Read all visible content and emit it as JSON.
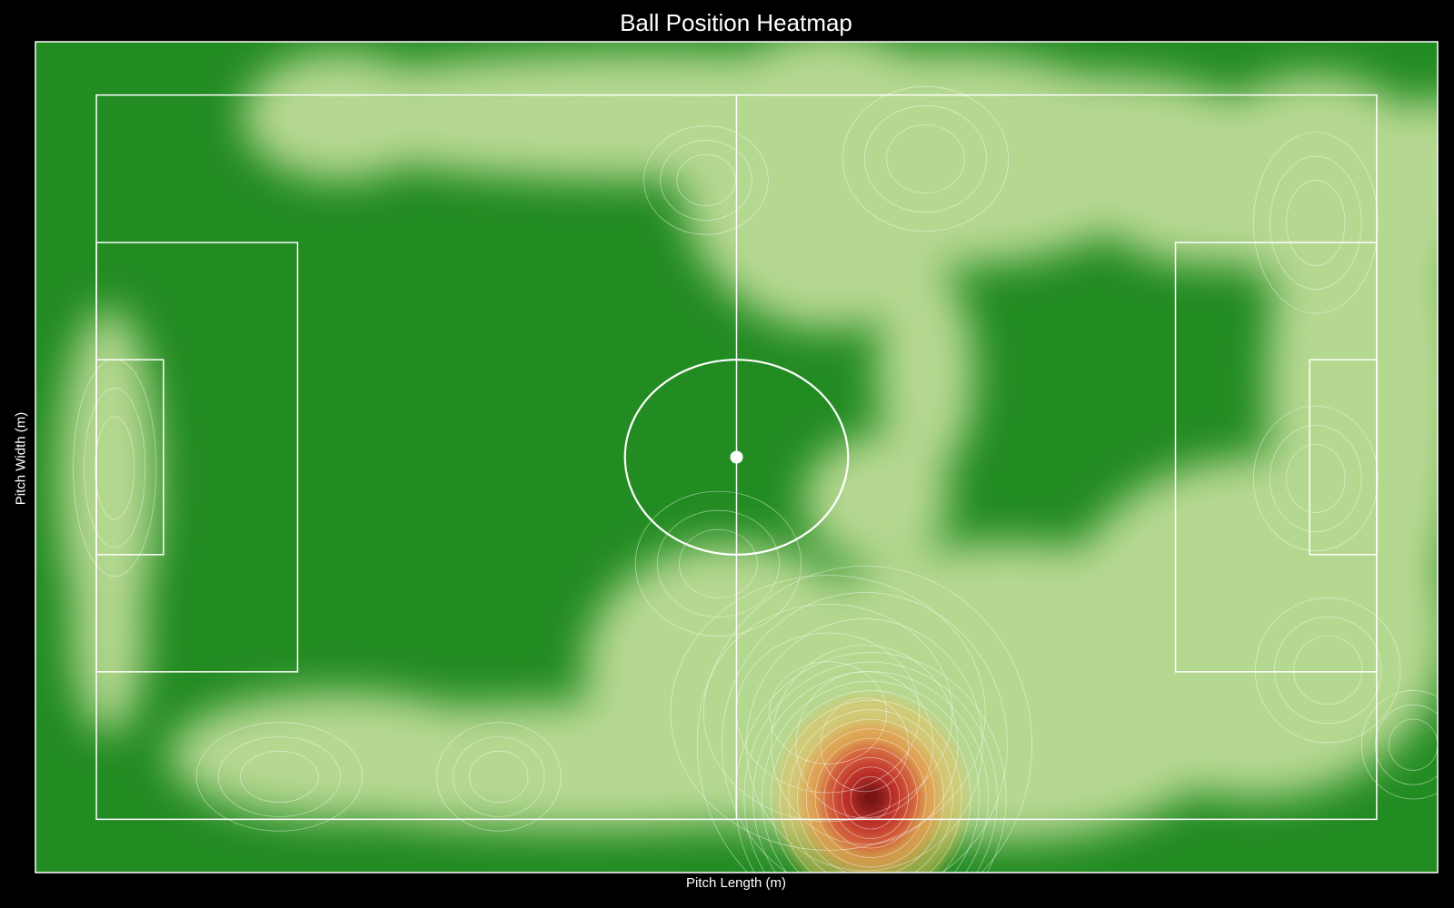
{
  "chart_data": {
    "type": "heatmap",
    "title": "Ball Position Heatmap",
    "xlabel": "Pitch Length (m)",
    "ylabel": "Pitch Width (m)",
    "xlim": [
      -5,
      110
    ],
    "ylim": [
      -5,
      73
    ],
    "grid": false,
    "colors": {
      "pitch": "#228b22",
      "low_density": "#b5d890",
      "mid_density": "#e8c060",
      "high_density": "#c0322a",
      "peak": "#6e1414",
      "lines": "#ffffff",
      "background": "#000000"
    },
    "pitch": {
      "length": 105,
      "width": 68,
      "center_circle_radius": 9.15,
      "penalty_area": {
        "depth": 16.5,
        "width": 40.3
      },
      "goal_area": {
        "depth": 5.5,
        "width": 18.3
      }
    },
    "density_peaks": [
      {
        "x": 63.5,
        "y": 2,
        "weight": 1.0,
        "sx": 2.6,
        "sy": 3.2
      },
      {
        "x": 63,
        "y": 7,
        "weight": 0.45,
        "sx": 4.5,
        "sy": 5.5
      },
      {
        "x": 60,
        "y": 10,
        "weight": 0.25,
        "sx": 6,
        "sy": 6
      },
      {
        "x": 100,
        "y": 56,
        "weight": 0.2,
        "sx": 3,
        "sy": 5
      },
      {
        "x": 100,
        "y": 32,
        "weight": 0.18,
        "sx": 3,
        "sy": 4
      },
      {
        "x": 101,
        "y": 14,
        "weight": 0.18,
        "sx": 3.5,
        "sy": 4
      },
      {
        "x": 1.5,
        "y": 33,
        "weight": 0.18,
        "sx": 2,
        "sy": 6
      },
      {
        "x": 15,
        "y": 4,
        "weight": 0.15,
        "sx": 4,
        "sy": 3
      },
      {
        "x": 33,
        "y": 4,
        "weight": 0.13,
        "sx": 3,
        "sy": 3
      },
      {
        "x": 51,
        "y": 24,
        "weight": 0.13,
        "sx": 4,
        "sy": 4
      },
      {
        "x": 68,
        "y": 62,
        "weight": 0.13,
        "sx": 4,
        "sy": 4
      },
      {
        "x": 50,
        "y": 60,
        "weight": 0.1,
        "sx": 3,
        "sy": 3
      },
      {
        "x": 108,
        "y": 7,
        "weight": 0.1,
        "sx": 2.5,
        "sy": 3
      }
    ]
  }
}
